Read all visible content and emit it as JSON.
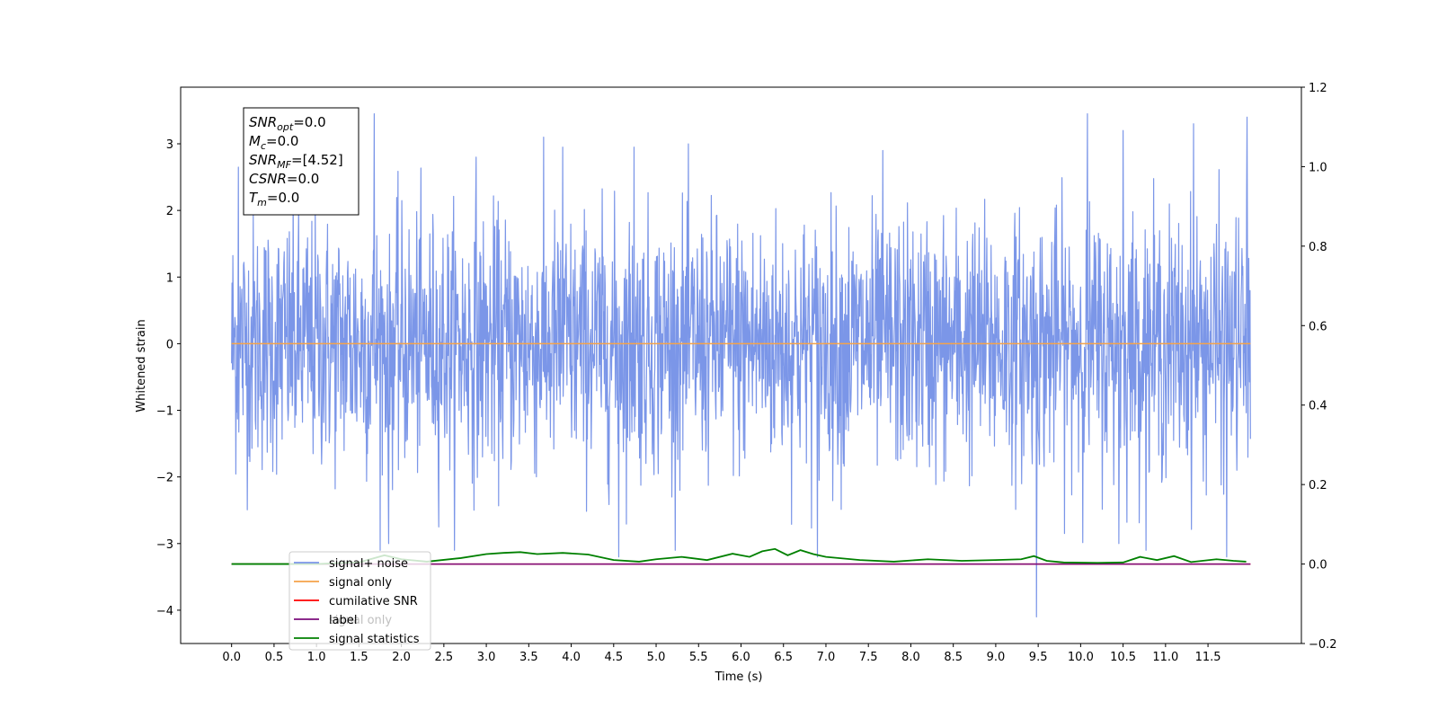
{
  "chart_data": {
    "type": "line",
    "xlabel": "Time (s)",
    "ylabel": "Whitened strain",
    "xlim": [
      -0.6,
      12.6
    ],
    "ylim": [
      -4.5,
      3.85
    ],
    "y2lim": [
      -0.2,
      1.2
    ],
    "x_ticks": [
      0.0,
      0.5,
      1.0,
      1.5,
      2.0,
      2.5,
      3.0,
      3.5,
      4.0,
      4.5,
      5.0,
      5.5,
      6.0,
      6.5,
      7.0,
      7.5,
      8.0,
      8.5,
      9.0,
      9.5,
      10.0,
      10.5,
      11.0,
      11.5
    ],
    "x_tick_labels": [
      "0.0",
      "0.5",
      "1.0",
      "1.5",
      "2.0",
      "2.5",
      "3.0",
      "3.5",
      "4.0",
      "4.5",
      "5.0",
      "5.5",
      "6.0",
      "6.5",
      "7.0",
      "7.5",
      "8.0",
      "8.5",
      "9.0",
      "9.5",
      "10.0",
      "10.5",
      "11.0",
      "11.5"
    ],
    "y_ticks": [
      -4,
      -3,
      -2,
      -1,
      0,
      1,
      2,
      3
    ],
    "y_tick_labels": [
      "−4",
      "−3",
      "−2",
      "−1",
      "0",
      "1",
      "2",
      "3"
    ],
    "y2_ticks": [
      -0.2,
      0.0,
      0.2,
      0.4,
      0.6,
      0.8,
      1.0,
      1.2
    ],
    "y2_tick_labels": [
      "−0.2",
      "0.0",
      "0.2",
      "0.4",
      "0.6",
      "0.8",
      "1.0",
      "1.2"
    ],
    "noise": {
      "x_start": 0.0,
      "x_end": 12.0,
      "amplitude": 1.0,
      "peaks": [
        [
          0.08,
          2.65
        ],
        [
          1.68,
          3.45
        ],
        [
          2.88,
          2.8
        ],
        [
          3.9,
          2.95
        ],
        [
          4.74,
          2.95
        ],
        [
          7.67,
          2.9
        ],
        [
          10.08,
          3.45
        ],
        [
          10.5,
          3.2
        ],
        [
          11.33,
          3.3
        ],
        [
          11.96,
          3.4
        ],
        [
          9.48,
          -4.1
        ],
        [
          1.85,
          -3.0
        ],
        [
          4.56,
          -3.2
        ],
        [
          6.9,
          -3.2
        ],
        [
          10.45,
          -3.0
        ],
        [
          11.72,
          -3.2
        ]
      ]
    },
    "grid": false,
    "legend_position": "lower-left",
    "series": [
      {
        "name": "signal+ noise",
        "color": "#7b96e8",
        "axis": "left",
        "kind": "noise"
      },
      {
        "name": "signal only",
        "color": "#f5a34a",
        "axis": "left",
        "x": [
          0.0,
          12.0
        ],
        "values": [
          0.0,
          0.0
        ]
      },
      {
        "name": "cumilative SNR",
        "color": "#ff0000",
        "axis": "right",
        "x": [
          0.0,
          12.0
        ],
        "values": [
          0.0,
          0.0
        ]
      },
      {
        "name": "label",
        "color": "#7b0d7b",
        "axis": "right",
        "x": [
          0.0,
          12.0
        ],
        "values": [
          0.0,
          0.0
        ]
      },
      {
        "name": "signal statistics",
        "color": "#008000",
        "axis": "right",
        "x": [
          0.0,
          0.5,
          1.0,
          1.5,
          1.8,
          2.0,
          2.3,
          2.7,
          3.0,
          3.2,
          3.4,
          3.6,
          3.9,
          4.2,
          4.5,
          4.8,
          5.0,
          5.3,
          5.6,
          5.9,
          6.1,
          6.25,
          6.4,
          6.55,
          6.7,
          6.85,
          7.0,
          7.4,
          7.8,
          8.2,
          8.6,
          9.0,
          9.3,
          9.45,
          9.6,
          9.8,
          10.2,
          10.5,
          10.7,
          10.9,
          11.1,
          11.3,
          11.6,
          11.8,
          11.95
        ],
        "values": [
          0.0,
          0.0,
          0.0,
          0.004,
          0.022,
          0.012,
          0.006,
          0.015,
          0.025,
          0.028,
          0.03,
          0.025,
          0.028,
          0.024,
          0.01,
          0.006,
          0.012,
          0.018,
          0.01,
          0.026,
          0.018,
          0.032,
          0.038,
          0.022,
          0.035,
          0.025,
          0.018,
          0.01,
          0.006,
          0.012,
          0.008,
          0.01,
          0.012,
          0.02,
          0.008,
          0.004,
          0.003,
          0.004,
          0.018,
          0.01,
          0.02,
          0.005,
          0.012,
          0.008,
          0.006
        ]
      }
    ]
  },
  "info_box": {
    "lines": [
      {
        "name": "SNR",
        "sub": "opt",
        "value": "=0.0"
      },
      {
        "name": "M",
        "sub": "c",
        "value": "=0.0"
      },
      {
        "name": "SNR",
        "sub": "MF",
        "value": "=[4.52]"
      },
      {
        "name": "CSNR",
        "sub": "",
        "value": "=0.0"
      },
      {
        "name": "T",
        "sub": "m",
        "value": "=0.0"
      }
    ]
  },
  "legend_overlap_text": "signal only",
  "legend_overlap_color": "#bfbfbf"
}
